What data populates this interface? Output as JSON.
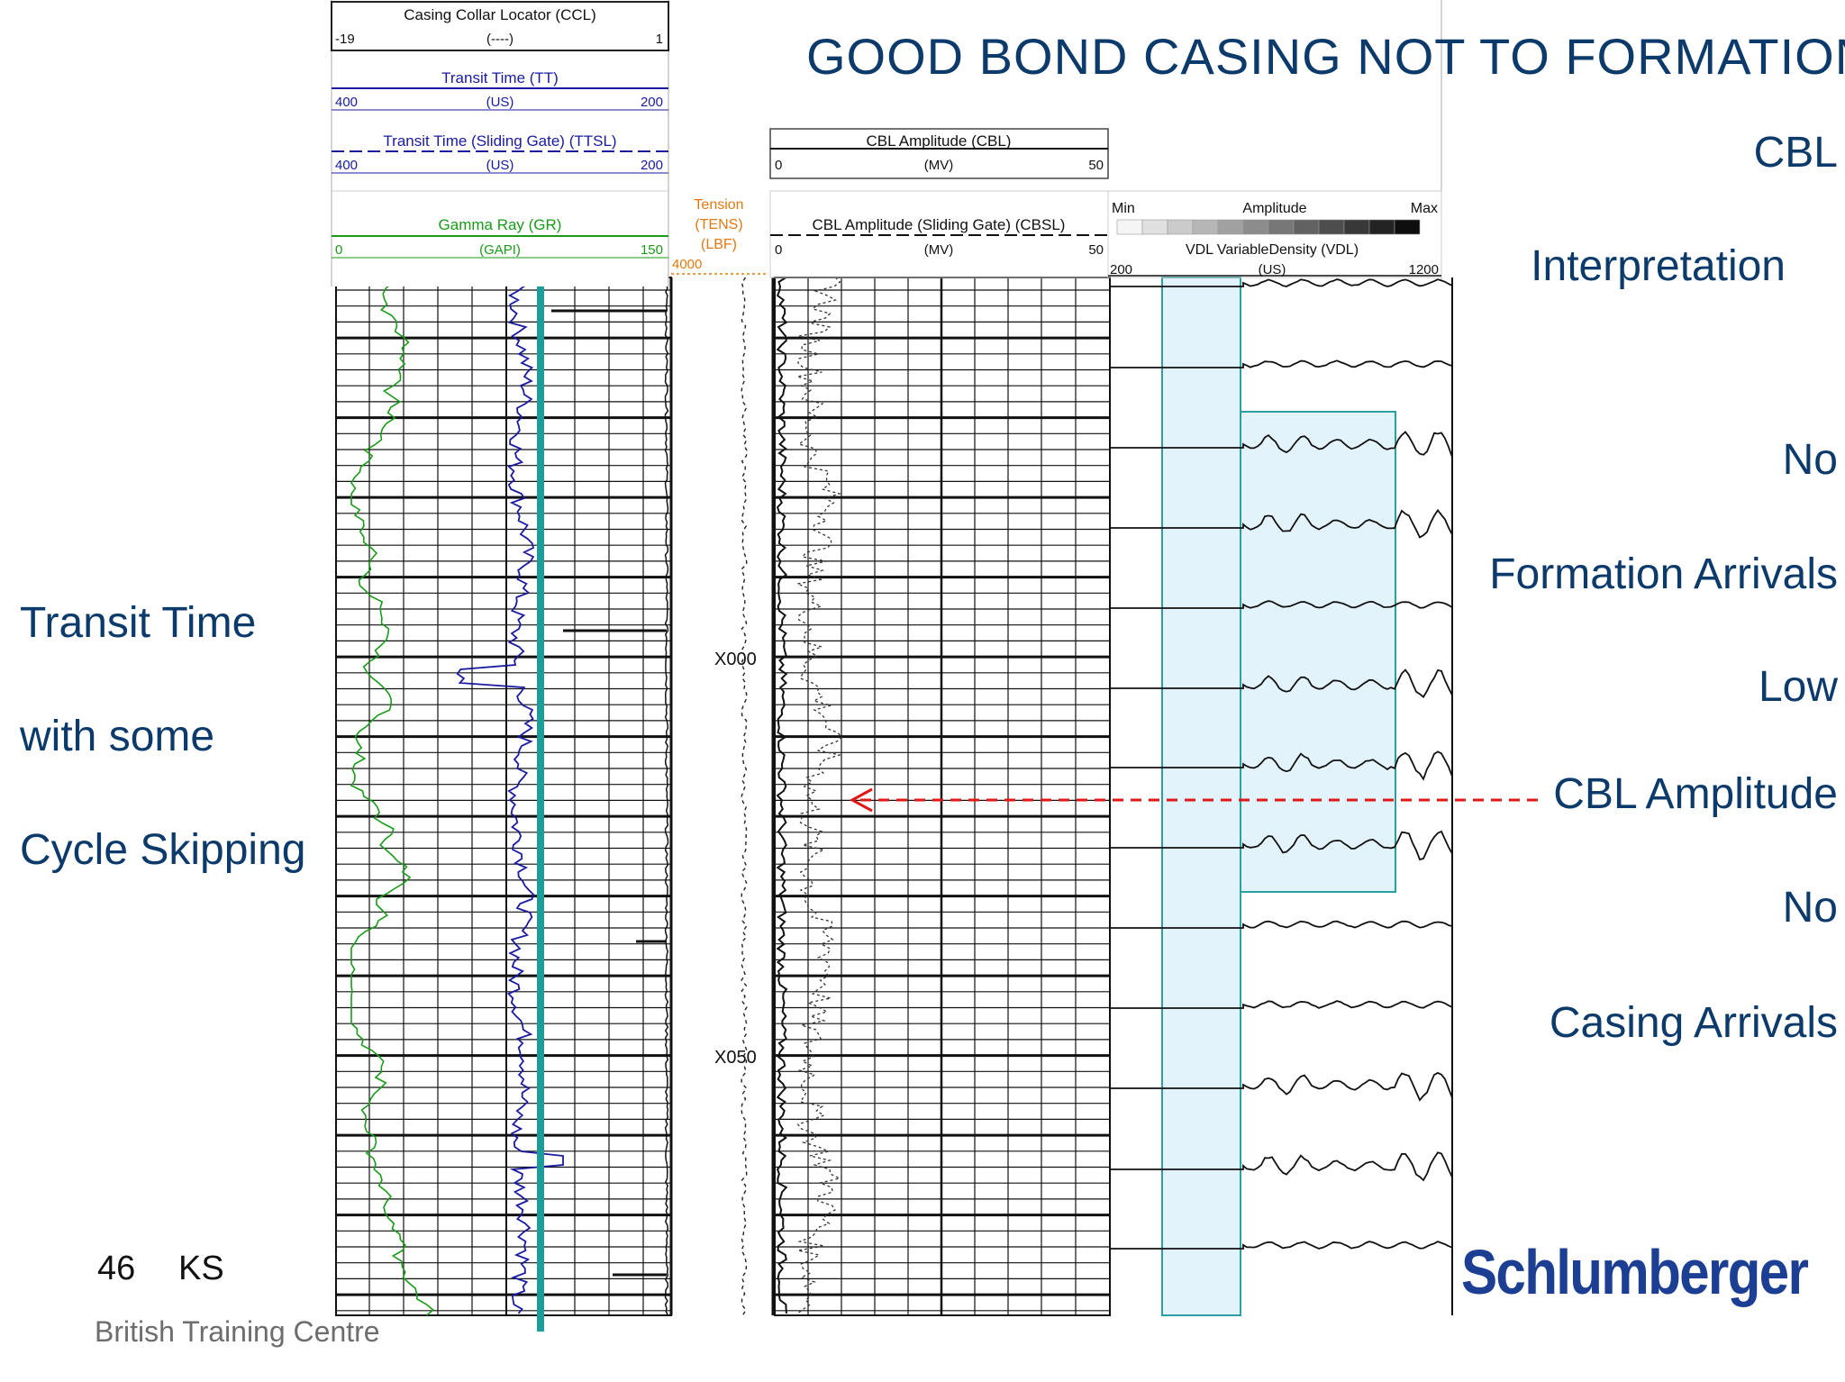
{
  "slide": {
    "title": "GOOD BOND CASING NOT TO FORMATION",
    "right_labels": [
      "CBL",
      "Interpretation",
      "No",
      "Formation Arrivals",
      "Low",
      "CBL Amplitude",
      "No",
      "Casing Arrivals"
    ],
    "left_labels": [
      "Transit Time",
      "with some",
      "Cycle Skipping"
    ],
    "page_number": "46",
    "author_initials": "KS",
    "footer": "British Training Centre",
    "logo_text": "Schlumberger"
  },
  "log_header": {
    "ccl": {
      "title": "Casing Collar Locator (CCL)",
      "left": "-19",
      "unit": "(----)",
      "right": "1"
    },
    "tt": {
      "title": "Transit Time (TT)",
      "left": "400",
      "unit": "(US)",
      "right": "200"
    },
    "ttsl": {
      "title": "Transit Time (Sliding Gate) (TTSL)",
      "left": "400",
      "unit": "(US)",
      "right": "200"
    },
    "gr": {
      "title": "Gamma Ray (GR)",
      "left": "0",
      "unit": "(GAPI)",
      "right": "150"
    },
    "tens": {
      "title": "Tension",
      "mnemonic": "(TENS)",
      "unit": "(LBF)",
      "value": "4000"
    },
    "cbl": {
      "title": "CBL Amplitude (CBL)",
      "left": "0",
      "unit": "(MV)",
      "right": "50"
    },
    "cbsl": {
      "title": "CBL Amplitude (Sliding Gate) (CBSL)",
      "left": "0",
      "unit": "(MV)",
      "right": "50"
    },
    "amp": {
      "min": "Min",
      "title": "Amplitude",
      "max": "Max"
    },
    "vdl": {
      "title": "VDL VariableDensity (VDL)",
      "left": "200",
      "unit": "(US)",
      "right": "1200"
    }
  },
  "depth_marks": [
    "X000",
    "X050"
  ],
  "colors": {
    "text_blue": "#0b3a6b",
    "gamma_ray": "#1a9a1a",
    "transit_time": "#1a1aa0",
    "teal_marker": "#1e9c9c",
    "tension": "#e07a10",
    "highlight_fill": "#e3f3fb",
    "highlight_stroke": "#2aa0a0",
    "arrow": "#e01818",
    "logo": "#1c3f94"
  }
}
